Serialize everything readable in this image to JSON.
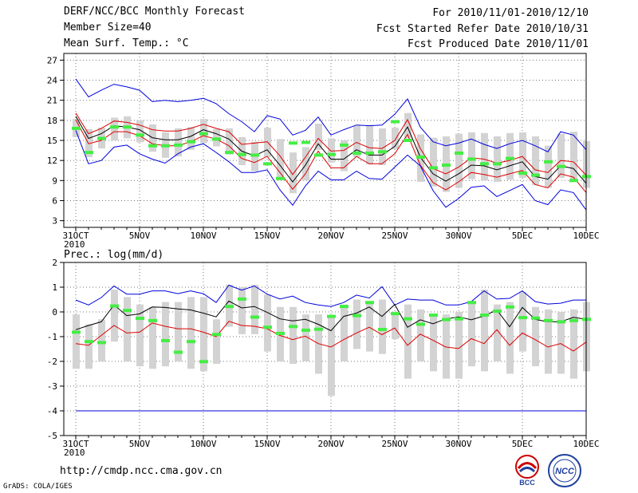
{
  "header": {
    "title": "DERF/NCC/BCC Monthly Forecast",
    "member": "Member Size=40",
    "variable": "Mean Surf. Temp.: °C",
    "period": "For 2010/11/01-2010/12/10",
    "started": "Fcst Started Refer Date 2010/10/31",
    "produced": "Fcst Produced Date 2010/11/01"
  },
  "footer": {
    "url": "http://cmdp.ncc.cma.gov.cn",
    "credit": "GrADS: COLA/IGES",
    "logo_left": "BCC",
    "logo_right": "NCC"
  },
  "colors": {
    "max": "#0000dd",
    "min": "#0000dd",
    "mean": "#000000",
    "spread": "#dd0000",
    "box": "#d3d3d3",
    "obs": "#44ee44",
    "grid": "#777777"
  },
  "chart_data": [
    {
      "type": "line",
      "title": "Mean Surf. Temp.: °C",
      "x_days": [
        31,
        1,
        2,
        3,
        4,
        5,
        6,
        7,
        8,
        9,
        10,
        11,
        12,
        13,
        14,
        15,
        16,
        17,
        18,
        19,
        20,
        21,
        22,
        23,
        24,
        25,
        26,
        27,
        28,
        29,
        30,
        1,
        2,
        3,
        4,
        5,
        6,
        7,
        8,
        9,
        10
      ],
      "xticks": [
        "31OCT",
        "5NOV",
        "10NOV",
        "15NOV",
        "20NOV",
        "25NOV",
        "30NOV",
        "5DEC",
        "10DEC"
      ],
      "xtick_sub": "2010",
      "ylim": [
        2,
        28
      ],
      "yticks": [
        3,
        6,
        9,
        12,
        15,
        18,
        21,
        24,
        27
      ],
      "series": [
        {
          "name": "max",
          "values": [
            24.2,
            21.5,
            22.5,
            23.4,
            23.0,
            22.5,
            20.8,
            21.0,
            20.8,
            21.0,
            21.3,
            20.5,
            19.0,
            17.8,
            16.3,
            18.7,
            18.2,
            15.8,
            16.5,
            18.5,
            15.8,
            16.6,
            17.3,
            17.2,
            17.3,
            18.9,
            21.2,
            17.0,
            14.8,
            14.2,
            14.6,
            15.2,
            14.4,
            13.8,
            14.5,
            15.0,
            14.2,
            13.3,
            16.3,
            15.8,
            13.6
          ]
        },
        {
          "name": "spread_high",
          "values": [
            19.1,
            16.0,
            16.8,
            17.9,
            17.7,
            17.3,
            16.6,
            16.4,
            16.4,
            16.8,
            17.4,
            16.8,
            16.3,
            14.4,
            14.6,
            14.8,
            12.7,
            9.9,
            12.5,
            15.3,
            13.4,
            13.5,
            14.7,
            13.9,
            13.8,
            15.0,
            18.1,
            13.8,
            10.8,
            10.0,
            11.0,
            12.4,
            12.2,
            11.6,
            12.0,
            12.6,
            10.6,
            10.2,
            12.0,
            11.8,
            9.8
          ]
        },
        {
          "name": "mean",
          "values": [
            18.6,
            15.3,
            16.0,
            17.2,
            17.0,
            16.6,
            15.4,
            15.1,
            15.1,
            15.6,
            16.6,
            16.0,
            15.2,
            13.4,
            12.7,
            13.6,
            11.3,
            8.8,
            11.3,
            14.5,
            12.2,
            12.2,
            13.6,
            12.8,
            12.8,
            14.1,
            17.0,
            12.5,
            10.0,
            8.9,
            10.0,
            11.3,
            11.2,
            10.6,
            11.2,
            11.8,
            9.6,
            9.2,
            11.2,
            10.8,
            8.6
          ]
        },
        {
          "name": "spread_low",
          "values": [
            18.1,
            14.5,
            15.0,
            16.3,
            16.3,
            15.7,
            14.5,
            14.2,
            14.2,
            14.8,
            15.7,
            15.2,
            14.2,
            12.3,
            11.7,
            12.6,
            10.2,
            7.7,
            10.0,
            13.4,
            10.9,
            10.9,
            12.6,
            11.5,
            11.5,
            13.0,
            15.9,
            11.3,
            8.7,
            7.6,
            8.8,
            10.2,
            9.9,
            9.5,
            10.0,
            10.5,
            8.4,
            7.9,
            10.0,
            9.5,
            7.2
          ]
        },
        {
          "name": "min",
          "values": [
            16.5,
            11.5,
            12.0,
            14.0,
            14.3,
            13.0,
            12.2,
            11.6,
            13.0,
            14.0,
            14.5,
            13.2,
            11.8,
            10.2,
            10.2,
            10.6,
            7.6,
            5.3,
            8.2,
            10.4,
            9.1,
            9.1,
            10.4,
            9.3,
            9.2,
            11.0,
            12.8,
            11.2,
            7.5,
            5.0,
            6.3,
            8.0,
            8.2,
            6.6,
            7.5,
            8.4,
            6.0,
            5.4,
            7.6,
            7.2,
            4.6
          ]
        }
      ],
      "boxes": {
        "low": [
          15.5,
          12.5,
          13.8,
          15.0,
          15.3,
          14.7,
          13.3,
          12.4,
          12.6,
          13.6,
          14.6,
          14.1,
          12.9,
          11.3,
          10.4,
          12.5,
          9.4,
          7.1,
          9.0,
          13.6,
          11.7,
          10.4,
          12.5,
          11.4,
          11.3,
          13.7,
          15.3,
          8.8,
          8.1,
          7.3,
          7.9,
          9.2,
          9.0,
          8.8,
          9.1,
          9.4,
          8.3,
          7.9,
          9.4,
          9.1,
          7.9
        ],
        "high": [
          18.2,
          16.7,
          16.9,
          18.4,
          18.6,
          18.0,
          17.4,
          16.2,
          16.8,
          17.0,
          18.2,
          16.7,
          16.8,
          15.5,
          14.8,
          16.9,
          15.2,
          13.2,
          14.0,
          17.5,
          15.3,
          15.0,
          17.2,
          17.3,
          16.8,
          16.9,
          19.1,
          15.9,
          15.4,
          15.6,
          16.0,
          16.2,
          16.1,
          15.6,
          16.1,
          16.2,
          15.6,
          14.2,
          16.0,
          16.3,
          14.9
        ]
      },
      "observed": [
        16.8,
        13.2,
        15.3,
        17.0,
        17.0,
        15.8,
        14.2,
        14.2,
        14.3,
        14.8,
        16.0,
        15.2,
        13.2,
        12.9,
        12.8,
        11.5,
        9.3,
        14.6,
        14.7,
        12.8,
        12.9,
        14.3,
        13.1,
        13.1,
        13.3,
        17.8,
        15.0,
        12.5,
        10.9,
        11.3,
        13.1,
        12.2,
        11.5,
        11.5,
        12.3,
        10.1,
        9.8,
        11.8,
        11.1,
        9.0,
        9.6
      ]
    },
    {
      "type": "line",
      "title": "Prec.: log(mm/d)",
      "x_days": [
        31,
        1,
        2,
        3,
        4,
        5,
        6,
        7,
        8,
        9,
        10,
        11,
        12,
        13,
        14,
        15,
        16,
        17,
        18,
        19,
        20,
        21,
        22,
        23,
        24,
        25,
        26,
        27,
        28,
        29,
        30,
        1,
        2,
        3,
        4,
        5,
        6,
        7,
        8,
        9,
        10
      ],
      "xticks": [
        "31OCT",
        "5NOV",
        "10NOV",
        "15NOV",
        "20NOV",
        "25NOV",
        "30NOV",
        "5DEC",
        "10DEC"
      ],
      "xtick_sub": "2010",
      "ylim": [
        -5,
        2
      ],
      "yticks": [
        -5,
        -4,
        -3,
        -2,
        -1,
        0,
        1,
        2
      ],
      "series": [
        {
          "name": "max",
          "values": [
            0.48,
            0.28,
            0.58,
            1.05,
            0.72,
            0.72,
            0.85,
            0.85,
            0.74,
            0.85,
            0.74,
            0.38,
            1.08,
            0.88,
            1.05,
            0.72,
            0.52,
            0.64,
            0.38,
            0.28,
            0.22,
            0.38,
            0.68,
            0.56,
            1.02,
            0.28,
            0.52,
            0.48,
            0.48,
            0.28,
            0.28,
            0.42,
            0.85,
            0.52,
            0.55,
            0.85,
            0.42,
            0.32,
            0.35,
            0.48,
            0.48
          ]
        },
        {
          "name": "mean",
          "values": [
            -0.72,
            -0.55,
            -0.4,
            0.28,
            -0.15,
            -0.08,
            0.2,
            0.18,
            0.12,
            0.08,
            -0.05,
            -0.2,
            0.44,
            0.16,
            0.22,
            -0.02,
            -0.28,
            -0.36,
            -0.3,
            -0.5,
            -0.76,
            -0.18,
            -0.05,
            0.2,
            -0.18,
            0.3,
            -0.62,
            -0.32,
            -0.48,
            -0.28,
            -0.2,
            -0.32,
            -0.16,
            0.08,
            -0.6,
            0.18,
            -0.3,
            -0.4,
            -0.4,
            -0.22,
            -0.3
          ]
        },
        {
          "name": "spread_low",
          "values": [
            -1.28,
            -1.35,
            -0.95,
            -0.55,
            -0.85,
            -0.82,
            -0.45,
            -0.58,
            -0.68,
            -0.68,
            -0.82,
            -1.0,
            -0.38,
            -0.55,
            -0.58,
            -0.68,
            -0.95,
            -1.12,
            -0.98,
            -1.28,
            -1.42,
            -1.12,
            -0.85,
            -0.62,
            -0.92,
            -0.65,
            -1.35,
            -0.9,
            -1.15,
            -1.42,
            -1.48,
            -1.08,
            -1.28,
            -0.72,
            -1.35,
            -0.85,
            -1.12,
            -1.42,
            -1.28,
            -1.58,
            -1.22
          ]
        },
        {
          "name": "min",
          "values": [
            -4,
            -4,
            -4,
            -4,
            -4,
            -4,
            -4,
            -4,
            -4,
            -4,
            -4,
            -4,
            -4,
            -4,
            -4,
            -4,
            -4,
            -4,
            -4,
            -4,
            -4,
            -4,
            -4,
            -4,
            -4,
            -4,
            -4,
            -4,
            -4,
            -4,
            -4,
            -4,
            -4,
            -4,
            -4,
            -4,
            -4,
            -4,
            -4,
            -4,
            -4
          ]
        }
      ],
      "boxes": {
        "low": [
          -2.3,
          -2.3,
          -2.0,
          -1.2,
          -2.0,
          -2.2,
          -2.3,
          -2.2,
          -2.0,
          -2.3,
          -2.4,
          -2.1,
          -0.6,
          -0.9,
          -0.9,
          -1.6,
          -2.0,
          -2.1,
          -2.0,
          -2.5,
          -3.4,
          -2.0,
          -1.5,
          -1.6,
          -1.7,
          -1.1,
          -2.7,
          -2.0,
          -2.4,
          -2.7,
          -2.7,
          -2.2,
          -2.4,
          -2.0,
          -2.5,
          -1.6,
          -2.2,
          -2.5,
          -2.5,
          -2.7,
          -2.4
        ],
        "high": [
          -0.1,
          -0.5,
          -0.3,
          0.9,
          0.6,
          0.3,
          0.2,
          0.4,
          0.4,
          0.6,
          0.6,
          -0.3,
          1.1,
          1.0,
          1.1,
          0.7,
          0.2,
          0.2,
          -0.1,
          -0.1,
          -0.2,
          0.3,
          0.5,
          0.4,
          0.5,
          0.0,
          0.3,
          0.1,
          -0.1,
          -0.1,
          0.0,
          0.4,
          0.9,
          0.3,
          0.4,
          0.8,
          0.2,
          0.1,
          0.0,
          0.1,
          0.4
        ]
      },
      "observed": [
        -0.82,
        -1.2,
        -1.24,
        0.24,
        0.06,
        -0.26,
        -0.35,
        -1.16,
        -1.63,
        -1.2,
        -2.01,
        -0.91,
        0.22,
        0.52,
        -0.21,
        -0.62,
        -0.87,
        -0.59,
        -0.74,
        -0.7,
        -0.18,
        0.22,
        -0.15,
        0.38,
        -0.71,
        -0.07,
        -0.28,
        -0.5,
        -0.13,
        -0.31,
        -0.28,
        0.38,
        -0.13,
        0.03,
        0.2,
        -0.23,
        -0.25,
        -0.35,
        -0.4,
        -0.35,
        -0.3
      ]
    }
  ]
}
